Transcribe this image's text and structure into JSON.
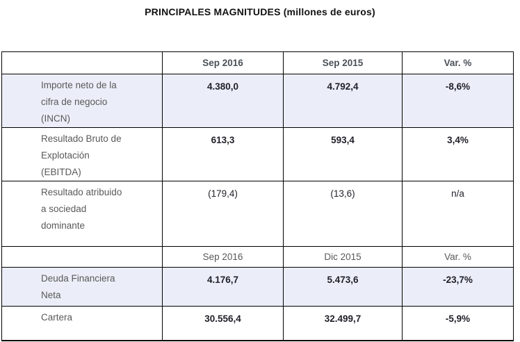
{
  "title": "PRINCIPALES MAGNITUDES (millones de euros)",
  "header_top": {
    "c1": "Sep 2016",
    "c2": "Sep 2015",
    "c3": "Var. %"
  },
  "header_mid": {
    "c1": "Sep 2016",
    "c2": "Dic 2015",
    "c3": "Var. %"
  },
  "rows": [
    {
      "label": "Importe neto de la\ncifra de negocio\n(INCN)",
      "c1": "4.380,0",
      "c2": "4.792,4",
      "c3": "-8,6%"
    },
    {
      "label": "Resultado Bruto de\nExplotación\n(EBITDA)",
      "c1": "613,3",
      "c2": "593,4",
      "c3": "3,4%"
    },
    {
      "label": "Resultado atribuido\na sociedad\ndominante",
      "c1": "(179,4)",
      "c2": "(13,6)",
      "c3": "n/a"
    },
    {
      "label": "Deuda Financiera\nNeta",
      "c1": "4.176,7",
      "c2": "5.473,6",
      "c3": "-23,7%"
    },
    {
      "label": "Cartera",
      "c1": "30.556,4",
      "c2": "32.499,7",
      "c3": "-5,9%"
    }
  ],
  "colors": {
    "highlight_row": "#EBEEF8",
    "border": "#000000",
    "header_text": "#4a5058",
    "label_text": "#595959",
    "value_text": "#1f1f28",
    "title_text": "#121212"
  }
}
